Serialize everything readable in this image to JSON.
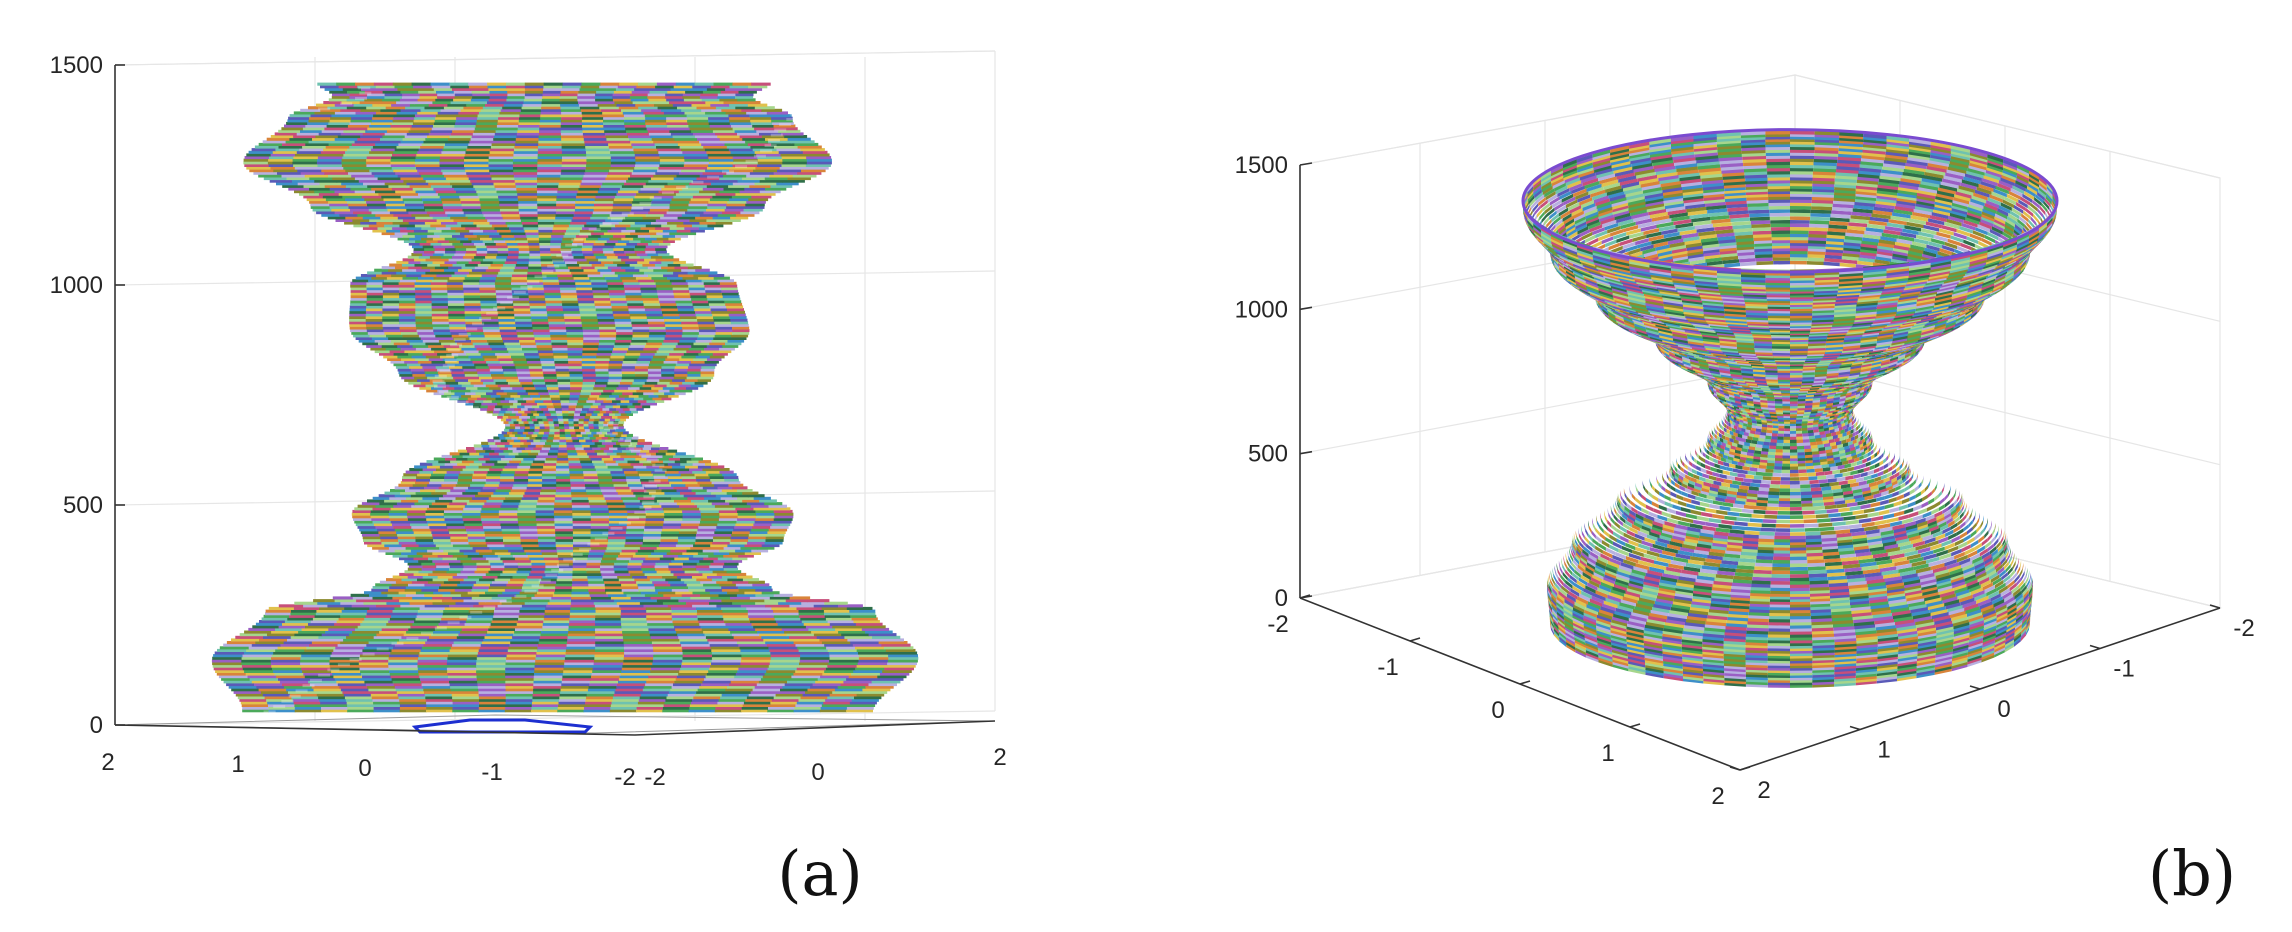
{
  "colors": {
    "stripes": [
      "#4ba95a",
      "#9a5fc4",
      "#d9843a",
      "#3d8fc9",
      "#c74f7a",
      "#6fc2b0",
      "#8c8a2f",
      "#b7b0e0",
      "#2f6f4a",
      "#e1c14c",
      "#5a5ab8",
      "#a6d68c"
    ],
    "base_contour": "#1d2fd0",
    "grid": "#e6e6e6",
    "axis": "#333333"
  },
  "chart_data": [
    {
      "panel_label": "(a)",
      "type": "surface-3d",
      "view": "side",
      "title": "",
      "xlabel": "",
      "ylabel": "",
      "zlabel": "",
      "zlim": [
        0,
        1500
      ],
      "z_ticks": [
        "0",
        "500",
        "1000",
        "1500"
      ],
      "x_tick_labels": [
        "2",
        "1",
        "0",
        "-1",
        "-2"
      ],
      "y_tick_labels": [
        "-2",
        "0",
        "2"
      ],
      "grid": true,
      "profile": {
        "z": [
          30,
          150,
          260,
          310,
          360,
          420,
          480,
          560,
          680,
          800,
          900,
          1000,
          1080,
          1180,
          1280,
          1380,
          1430,
          1460
        ],
        "radius": [
          1.5,
          1.68,
          1.45,
          0.95,
          0.78,
          1.0,
          1.05,
          0.8,
          0.28,
          0.75,
          0.95,
          0.92,
          0.6,
          1.08,
          1.4,
          1.2,
          1.0,
          1.08
        ]
      },
      "base_contour": {
        "x": [
          -1.6,
          -0.5,
          0.6,
          1.9,
          1.8,
          -1.5
        ],
        "y": [
          0.0,
          0.35,
          0.35,
          0.0,
          -0.25,
          -0.25
        ]
      }
    },
    {
      "panel_label": "(b)",
      "type": "surface-3d",
      "view": "oblique",
      "title": "",
      "xlabel": "",
      "ylabel": "",
      "zlabel": "",
      "zlim": [
        0,
        1500
      ],
      "z_ticks": [
        "0",
        "500",
        "1000",
        "1500"
      ],
      "x_ticks": [
        "-2",
        "-1",
        "0",
        "1",
        "2"
      ],
      "y_ticks": [
        "2",
        "1",
        "0",
        "-1",
        "-2"
      ],
      "grid": true,
      "profile": {
        "z": [
          10,
          150,
          300,
          450,
          550,
          650,
          750,
          850,
          1000,
          1150,
          1300,
          1450,
          1480
        ],
        "radius": [
          1.6,
          1.62,
          1.45,
          1.15,
          0.8,
          0.55,
          0.42,
          0.55,
          0.9,
          1.3,
          1.6,
          1.78,
          1.78
        ]
      }
    }
  ]
}
